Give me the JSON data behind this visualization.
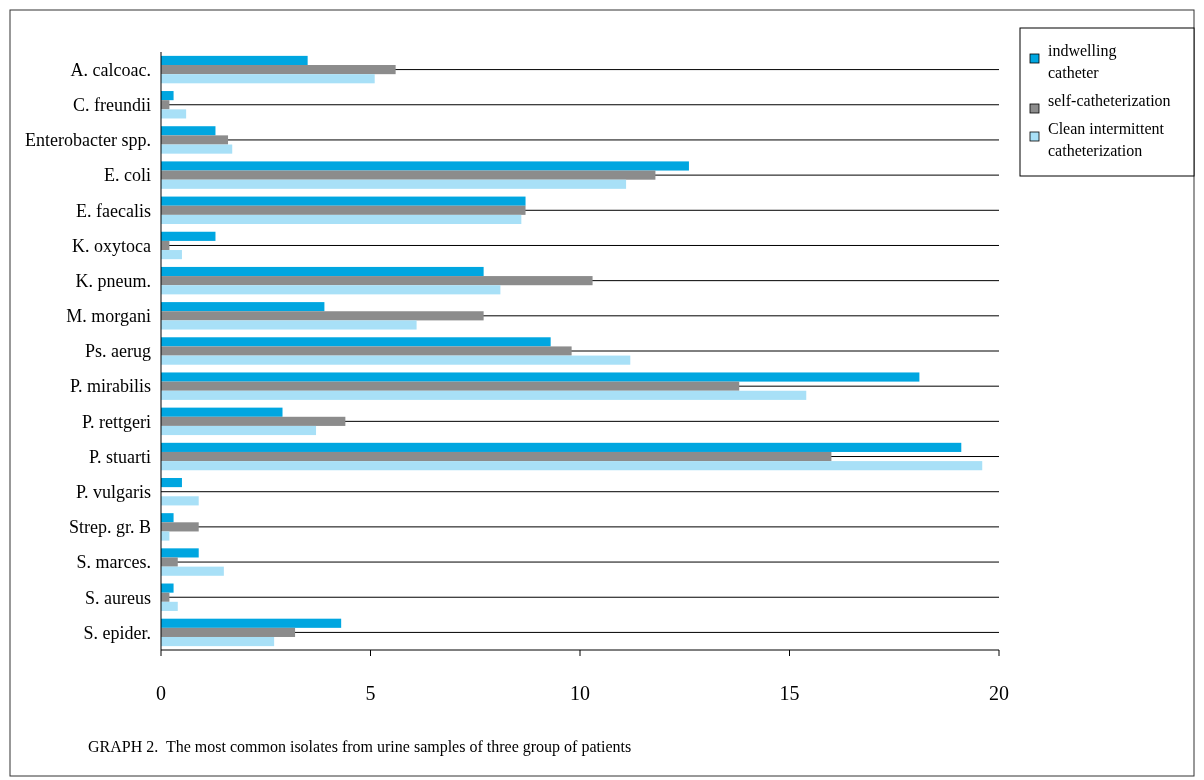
{
  "chart_data": {
    "type": "bar",
    "orientation": "horizontal",
    "categories": [
      "A. calcoac.",
      "C. freundii",
      "Enterobacter spp.",
      "E. coli",
      "E. faecalis",
      "K. oxytoca",
      "K. pneum.",
      "M. morgani",
      "Ps. aerug",
      "P. mirabilis",
      "P. rettgeri",
      "P. stuarti",
      "P. vulgaris",
      "Strep. gr. B",
      "S. marces.",
      "S. aureus",
      "S. epider."
    ],
    "series": [
      {
        "name": "indwelling catheter",
        "color": "#00a6e0",
        "values": [
          3.5,
          0.3,
          1.3,
          12.6,
          8.7,
          1.3,
          7.7,
          3.9,
          9.3,
          18.1,
          2.9,
          19.1,
          0.5,
          0.3,
          0.9,
          0.3,
          4.3
        ]
      },
      {
        "name": "self-catheterization",
        "color": "#8c8c8c",
        "values": [
          5.6,
          0.2,
          1.6,
          11.8,
          8.7,
          0.2,
          10.3,
          7.7,
          9.8,
          13.8,
          4.4,
          16.0,
          0,
          0.9,
          0.4,
          0.2,
          3.2
        ]
      },
      {
        "name": "Clean intermittent catheterization",
        "color": "#a8e0f7",
        "values": [
          5.1,
          0.6,
          1.7,
          11.1,
          8.6,
          0.5,
          8.1,
          6.1,
          11.2,
          15.4,
          3.7,
          19.6,
          0.9,
          0.2,
          1.5,
          0.4,
          2.7
        ]
      }
    ],
    "xlim": [
      0,
      20
    ],
    "xticks": [
      0,
      5,
      10,
      15,
      20
    ],
    "grid": "y",
    "legend": "top right",
    "annotations": [
      "GRAPH 2.  The most common isolates from urine samples of three group of patients"
    ]
  }
}
